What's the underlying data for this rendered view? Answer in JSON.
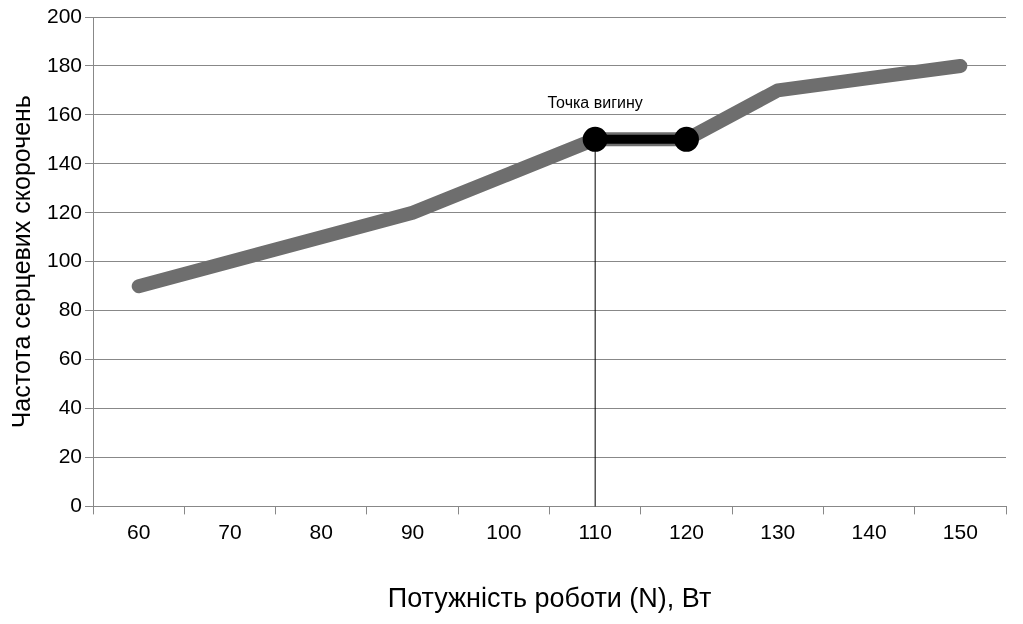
{
  "chart_data": {
    "type": "line",
    "xlabel": "Потужність роботи (N), Вт",
    "ylabel": "Частота серцевих скорочень",
    "categories": [
      "60",
      "70",
      "80",
      "90",
      "100",
      "110",
      "120",
      "130",
      "140",
      "150"
    ],
    "series": [
      {
        "color": "#6e6e6e",
        "values": [
          90,
          100,
          110,
          120,
          135,
          150,
          150,
          170,
          175,
          180
        ],
        "marker": "none"
      },
      {
        "color": "#000000",
        "values": [
          null,
          null,
          null,
          null,
          null,
          150,
          150,
          null,
          null,
          null
        ],
        "marker": "circle"
      }
    ],
    "ylim": [
      0,
      200
    ],
    "yticks": [
      0,
      20,
      40,
      60,
      80,
      100,
      120,
      140,
      160,
      180,
      200
    ],
    "grid": "y",
    "legend": false,
    "ref_lines": [
      {
        "axis": "x",
        "value": "110",
        "label": "Точка вигину",
        "color": "#000000"
      }
    ]
  }
}
